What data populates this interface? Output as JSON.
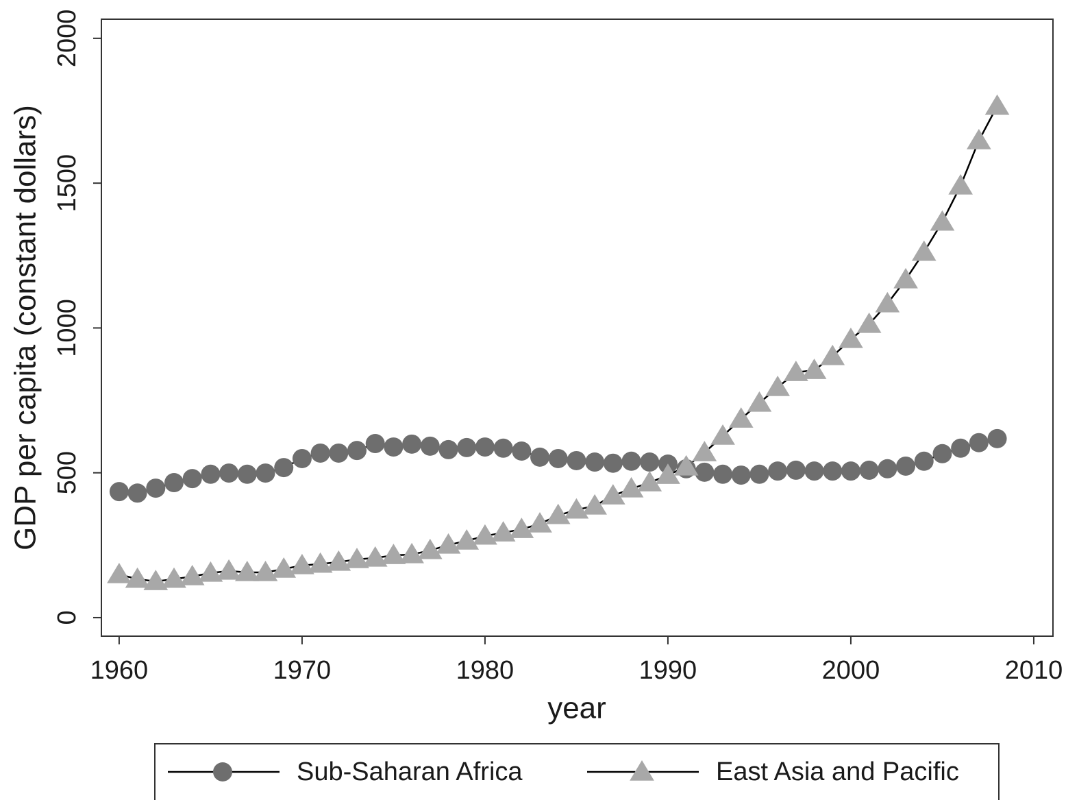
{
  "chart_data": {
    "type": "line",
    "x_label": "year",
    "y_label": "GDP per capita (constant dollars)",
    "x": [
      1960,
      1961,
      1962,
      1963,
      1964,
      1965,
      1966,
      1967,
      1968,
      1969,
      1970,
      1971,
      1972,
      1973,
      1974,
      1975,
      1976,
      1977,
      1978,
      1979,
      1980,
      1981,
      1982,
      1983,
      1984,
      1985,
      1986,
      1987,
      1988,
      1989,
      1990,
      1991,
      1992,
      1993,
      1994,
      1995,
      1996,
      1997,
      1998,
      1999,
      2000,
      2001,
      2002,
      2003,
      2004,
      2005,
      2006,
      2007,
      2008
    ],
    "series": [
      {
        "name": "Sub-Saharan Africa",
        "color": "#6e6e6e",
        "marker": "circle",
        "values": [
          435,
          430,
          447,
          466,
          480,
          495,
          499,
          495,
          499,
          518,
          549,
          568,
          568,
          577,
          601,
          589,
          599,
          592,
          580,
          587,
          589,
          585,
          575,
          554,
          549,
          542,
          537,
          533,
          540,
          537,
          530,
          514,
          502,
          495,
          492,
          495,
          506,
          509,
          506,
          506,
          506,
          509,
          514,
          523,
          540,
          566,
          585,
          604,
          618
        ]
      },
      {
        "name": "East Asia and Pacific",
        "color": "#a8a8a8",
        "marker": "triangle",
        "values": [
          149,
          133,
          125,
          133,
          142,
          154,
          161,
          156,
          156,
          168,
          180,
          185,
          192,
          201,
          206,
          215,
          218,
          232,
          251,
          265,
          282,
          293,
          305,
          324,
          353,
          372,
          386,
          421,
          445,
          466,
          492,
          521,
          570,
          627,
          686,
          741,
          795,
          847,
          854,
          902,
          961,
          1013,
          1084,
          1167,
          1262,
          1366,
          1491,
          1647,
          1766
        ]
      }
    ],
    "xlim": [
      1959.03,
      2011.05
    ],
    "xticks": [
      1960,
      1970,
      1980,
      1990,
      2000,
      2010
    ],
    "ylim": [
      -64,
      2066
    ],
    "yticks": [
      0,
      500,
      1000,
      1500,
      2000
    ],
    "line_color": "#000000",
    "legend": "bottom"
  }
}
